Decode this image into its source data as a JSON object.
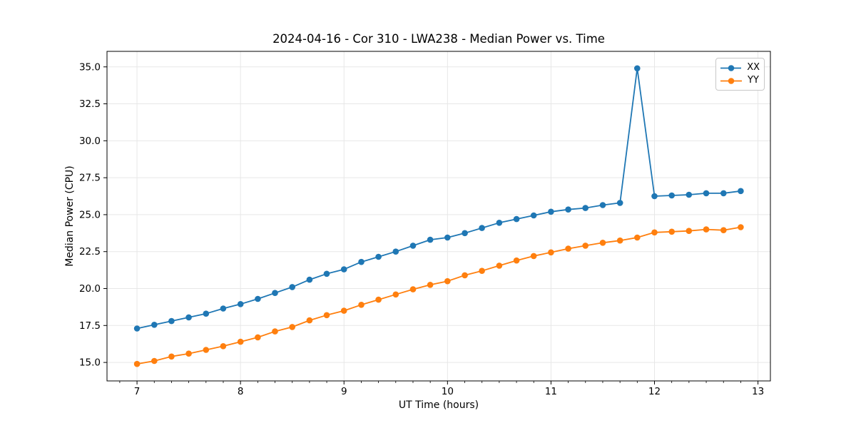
{
  "colors": {
    "background": "#ffffff",
    "axis": "#000000",
    "grid": "#e7e7e7",
    "series_xx": "#1f77b4",
    "series_yy": "#ff7f0e"
  },
  "chart_data": {
    "type": "line",
    "title": "2024-04-16 - Cor 310 - LWA238 - Median Power vs. Time",
    "xlabel": "UT Time (hours)",
    "ylabel": "Median Power (CPU)",
    "xlim": [
      6.71,
      13.12
    ],
    "ylim": [
      13.75,
      36.05
    ],
    "x_ticks": [
      7,
      8,
      9,
      10,
      11,
      12,
      13
    ],
    "y_ticks": [
      15.0,
      17.5,
      20.0,
      22.5,
      25.0,
      27.5,
      30.0,
      32.5,
      35.0
    ],
    "x_minor_step": 0.1667,
    "grid": true,
    "legend_position": "upper right",
    "x": [
      7.0,
      7.167,
      7.333,
      7.5,
      7.667,
      7.833,
      8.0,
      8.167,
      8.333,
      8.5,
      8.667,
      8.833,
      9.0,
      9.167,
      9.333,
      9.5,
      9.667,
      9.833,
      10.0,
      10.167,
      10.333,
      10.5,
      10.667,
      10.833,
      11.0,
      11.167,
      11.333,
      11.5,
      11.667,
      11.833,
      12.0,
      12.167,
      12.333,
      12.5,
      12.667,
      12.833
    ],
    "series": [
      {
        "name": "XX",
        "color": "#1f77b4",
        "values": [
          17.3,
          17.55,
          17.8,
          18.05,
          18.3,
          18.65,
          18.95,
          19.3,
          19.7,
          20.1,
          20.6,
          21.0,
          21.3,
          21.8,
          22.15,
          22.5,
          22.9,
          23.3,
          23.45,
          23.75,
          24.1,
          24.45,
          24.7,
          24.95,
          25.2,
          25.35,
          25.45,
          25.65,
          25.8,
          34.9,
          26.25,
          26.3,
          26.35,
          26.45,
          26.45,
          26.6
        ]
      },
      {
        "name": "YY",
        "color": "#ff7f0e",
        "values": [
          14.9,
          15.1,
          15.4,
          15.6,
          15.85,
          16.1,
          16.4,
          16.7,
          17.1,
          17.4,
          17.85,
          18.2,
          18.5,
          18.9,
          19.25,
          19.6,
          19.95,
          20.25,
          20.5,
          20.9,
          21.2,
          21.55,
          21.9,
          22.2,
          22.45,
          22.7,
          22.9,
          23.1,
          23.25,
          23.45,
          23.8,
          23.85,
          23.9,
          24.0,
          23.95,
          24.15
        ]
      }
    ]
  }
}
